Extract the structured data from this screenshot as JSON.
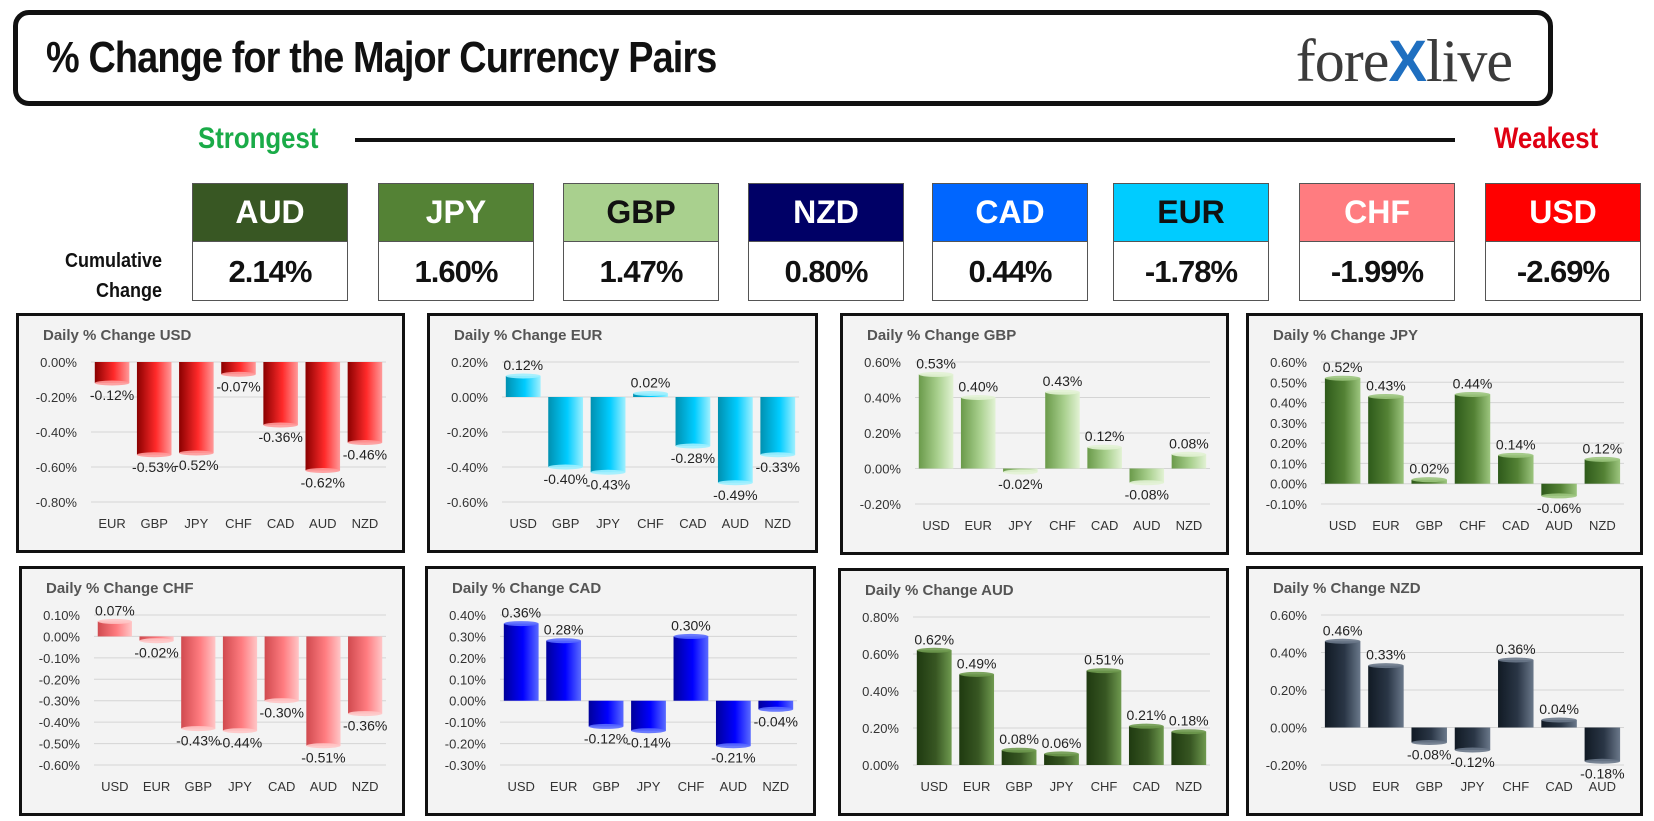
{
  "header": {
    "title": "% Change for the Major Currency Pairs",
    "logo_left": "fore",
    "logo_x": "X",
    "logo_right": "live"
  },
  "ranking": {
    "strongest_label": "Strongest",
    "weakest_label": "Weakest",
    "cumulative_label_line1": "Cumulative",
    "cumulative_label_line2": "Change",
    "currencies": [
      {
        "name": "AUD",
        "value": "2.14%",
        "bg": "#385723",
        "fg": "#ffffff"
      },
      {
        "name": "JPY",
        "value": "1.60%",
        "bg": "#548235",
        "fg": "#ffffff"
      },
      {
        "name": "GBP",
        "value": "1.47%",
        "bg": "#a9d08e",
        "fg": "#111111"
      },
      {
        "name": "NZD",
        "value": "0.80%",
        "bg": "#000066",
        "fg": "#ffffff"
      },
      {
        "name": "CAD",
        "value": "0.44%",
        "bg": "#0066ff",
        "fg": "#ffffff"
      },
      {
        "name": "EUR",
        "value": "-1.78%",
        "bg": "#00ccff",
        "fg": "#111111"
      },
      {
        "name": "CHF",
        "value": "-1.99%",
        "bg": "#ff7c80",
        "fg": "#ffffff"
      },
      {
        "name": "USD",
        "value": "-2.69%",
        "bg": "#ff0000",
        "fg": "#ffffff"
      }
    ]
  },
  "chart_data": [
    {
      "type": "bar",
      "title": "Daily % Change USD",
      "categories": [
        "EUR",
        "GBP",
        "JPY",
        "CHF",
        "CAD",
        "AUD",
        "NZD"
      ],
      "values": [
        -0.12,
        -0.53,
        -0.52,
        -0.07,
        -0.36,
        -0.62,
        -0.46
      ],
      "labels": [
        "-0.12%",
        "-0.53%",
        "-0.52%",
        "-0.07%",
        "-0.36%",
        "-0.62%",
        "-0.46%"
      ],
      "yticks": [
        "0.00%",
        "-0.20%",
        "-0.40%",
        "-0.60%",
        "-0.80%"
      ],
      "ylim": [
        -0.8,
        0
      ],
      "colors": [
        "#8a0000",
        "#ff2a2a",
        "#ff9a9a"
      ]
    },
    {
      "type": "bar",
      "title": "Daily % Change EUR",
      "categories": [
        "USD",
        "GBP",
        "JPY",
        "CHF",
        "CAD",
        "AUD",
        "NZD"
      ],
      "values": [
        0.12,
        -0.4,
        -0.43,
        0.02,
        -0.28,
        -0.49,
        -0.33
      ],
      "labels": [
        "0.12%",
        "-0.40%",
        "-0.43%",
        "0.02%",
        "-0.28%",
        "-0.49%",
        "-0.33%"
      ],
      "yticks": [
        "0.20%",
        "0.00%",
        "-0.20%",
        "-0.40%",
        "-0.60%"
      ],
      "ylim": [
        -0.6,
        0.2
      ],
      "colors": [
        "#0090b0",
        "#00ccff",
        "#9ff0ff"
      ]
    },
    {
      "type": "bar",
      "title": "Daily % Change GBP",
      "categories": [
        "USD",
        "EUR",
        "JPY",
        "CHF",
        "CAD",
        "AUD",
        "NZD"
      ],
      "values": [
        0.53,
        0.4,
        -0.02,
        0.43,
        0.12,
        -0.08,
        0.08
      ],
      "labels": [
        "0.53%",
        "0.40%",
        "-0.02%",
        "0.43%",
        "0.12%",
        "-0.08%",
        "0.08%"
      ],
      "yticks": [
        "0.60%",
        "0.40%",
        "0.20%",
        "0.00%",
        "-0.20%"
      ],
      "ylim": [
        -0.2,
        0.6
      ],
      "colors": [
        "#6a9a4a",
        "#a9d08e",
        "#e2f2d4"
      ]
    },
    {
      "type": "bar",
      "title": "Daily % Change JPY",
      "categories": [
        "USD",
        "EUR",
        "GBP",
        "CHF",
        "CAD",
        "AUD",
        "NZD"
      ],
      "values": [
        0.52,
        0.43,
        0.02,
        0.44,
        0.14,
        -0.06,
        0.12
      ],
      "labels": [
        "0.52%",
        "0.43%",
        "0.02%",
        "0.44%",
        "0.14%",
        "-0.06%",
        "0.12%"
      ],
      "yticks": [
        "0.60%",
        "0.50%",
        "0.40%",
        "0.30%",
        "0.20%",
        "0.10%",
        "0.00%",
        "-0.10%"
      ],
      "ylim": [
        -0.1,
        0.6
      ],
      "colors": [
        "#2e5a1a",
        "#548235",
        "#9cc57e"
      ]
    },
    {
      "type": "bar",
      "title": "Daily % Change CHF",
      "categories": [
        "USD",
        "EUR",
        "GBP",
        "JPY",
        "CAD",
        "AUD",
        "NZD"
      ],
      "values": [
        0.07,
        -0.02,
        -0.43,
        -0.44,
        -0.3,
        -0.51,
        -0.36
      ],
      "labels": [
        "0.07%",
        "-0.02%",
        "-0.43%",
        "-0.44%",
        "-0.30%",
        "-0.51%",
        "-0.36%"
      ],
      "yticks": [
        "0.10%",
        "0.00%",
        "-0.10%",
        "-0.20%",
        "-0.30%",
        "-0.40%",
        "-0.50%",
        "-0.60%"
      ],
      "ylim": [
        -0.6,
        0.1
      ],
      "colors": [
        "#d04a4f",
        "#ff7c80",
        "#ffc6c7"
      ]
    },
    {
      "type": "bar",
      "title": "Daily % Change CAD",
      "categories": [
        "USD",
        "EUR",
        "GBP",
        "JPY",
        "CHF",
        "AUD",
        "NZD"
      ],
      "values": [
        0.36,
        0.28,
        -0.12,
        -0.14,
        0.3,
        -0.21,
        -0.04
      ],
      "labels": [
        "0.36%",
        "0.28%",
        "-0.12%",
        "-0.14%",
        "0.30%",
        "-0.21%",
        "-0.04%"
      ],
      "yticks": [
        "0.40%",
        "0.30%",
        "0.20%",
        "0.10%",
        "0.00%",
        "-0.10%",
        "-0.20%",
        "-0.30%"
      ],
      "ylim": [
        -0.3,
        0.4
      ],
      "colors": [
        "#00009a",
        "#0000ff",
        "#5a6bff"
      ]
    },
    {
      "type": "bar",
      "title": "Daily % Change AUD",
      "categories": [
        "USD",
        "EUR",
        "GBP",
        "JPY",
        "CHF",
        "CAD",
        "NZD"
      ],
      "values": [
        0.62,
        0.49,
        0.08,
        0.06,
        0.51,
        0.21,
        0.18
      ],
      "labels": [
        "0.62%",
        "0.49%",
        "0.08%",
        "0.06%",
        "0.51%",
        "0.21%",
        "0.18%"
      ],
      "yticks": [
        "0.80%",
        "0.60%",
        "0.40%",
        "0.20%",
        "0.00%"
      ],
      "ylim": [
        0,
        0.8
      ],
      "colors": [
        "#1f3a10",
        "#385723",
        "#6f9a4f"
      ]
    },
    {
      "type": "bar",
      "title": "Daily % Change NZD",
      "categories": [
        "USD",
        "EUR",
        "GBP",
        "JPY",
        "CHF",
        "CAD",
        "AUD"
      ],
      "values": [
        0.46,
        0.33,
        -0.08,
        -0.12,
        0.36,
        0.04,
        -0.18
      ],
      "labels": [
        "0.46%",
        "0.33%",
        "-0.08%",
        "-0.12%",
        "0.36%",
        "0.04%",
        "-0.18%"
      ],
      "yticks": [
        "0.60%",
        "0.40%",
        "0.20%",
        "0.00%",
        "-0.20%"
      ],
      "ylim": [
        -0.2,
        0.6
      ],
      "colors": [
        "#111a24",
        "#2a3646",
        "#6a788a"
      ]
    }
  ]
}
